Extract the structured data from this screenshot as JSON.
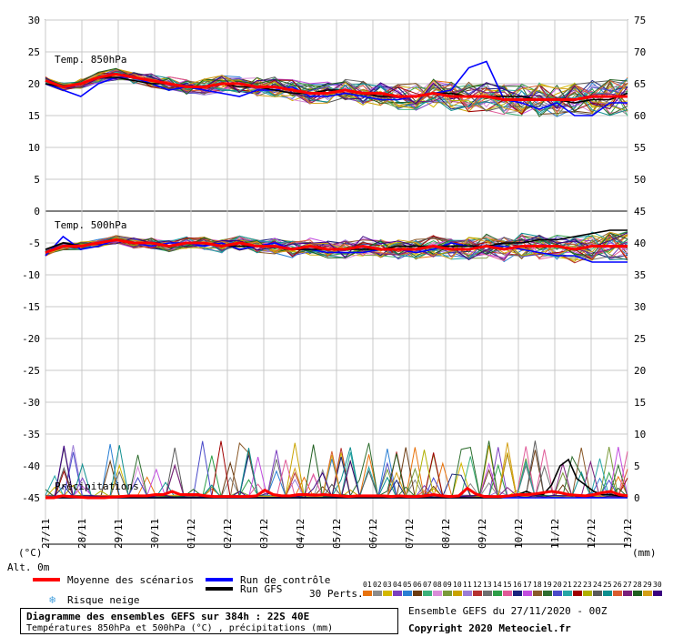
{
  "chart_data": {
    "type": "line",
    "x_ticks": [
      "27/11",
      "28/11",
      "29/11",
      "30/11",
      "01/12",
      "02/12",
      "03/12",
      "04/12",
      "05/12",
      "06/12",
      "07/12",
      "08/12",
      "09/12",
      "10/12",
      "11/12",
      "12/12",
      "13/12"
    ],
    "x_range": [
      "27/11",
      "13/12"
    ],
    "left_axis": {
      "unit": "(°C)",
      "ticks": [
        30,
        25,
        20,
        15,
        10,
        5,
        0,
        -5,
        -10,
        -15,
        -20,
        -25,
        -30,
        -35,
        -40,
        -45
      ],
      "range": [
        -45,
        30
      ]
    },
    "right_axis": {
      "unit": "(mm)",
      "ticks": [
        75,
        70,
        65,
        60,
        55,
        50,
        45,
        40,
        35,
        30,
        25,
        20,
        15,
        10,
        5,
        0
      ],
      "range": [
        0,
        75
      ]
    },
    "panel_labels": {
      "t850": "Temp. 850hPa",
      "t500": "Temp. 500hPa",
      "precip": "Précipitations",
      "alt": "Alt. 0m"
    },
    "members_label": "30 Perts.",
    "member_ids": [
      "01",
      "02",
      "03",
      "04",
      "05",
      "06",
      "07",
      "08",
      "09",
      "10",
      "11",
      "12",
      "13",
      "14",
      "15",
      "16",
      "17",
      "18",
      "19",
      "20",
      "21",
      "22",
      "23",
      "24",
      "25",
      "26",
      "27",
      "28",
      "29",
      "30"
    ],
    "member_colors": [
      "#e8720c",
      "#8c8c8c",
      "#d4b800",
      "#7b3fbf",
      "#2a7fd4",
      "#6b3b12",
      "#3db27a",
      "#d98cd9",
      "#7a9a3a",
      "#c9a300",
      "#9b7bd6",
      "#b53030",
      "#6f6f6f",
      "#2e9e48",
      "#e05a98",
      "#1a237e",
      "#c24de0",
      "#8a5a2a",
      "#2f6e2f",
      "#4a4ac9",
      "#26a6a6",
      "#a00000",
      "#b0b000",
      "#5a5a5a",
      "#0e8f8f",
      "#d95d2f",
      "#7b1f7b",
      "#1f5f1f",
      "#d4a017",
      "#3b0080"
    ],
    "series": [
      {
        "name": "Moyenne des scénarios",
        "color": "#ff0000",
        "t850": [
          20.5,
          19.5,
          20,
          21,
          21.5,
          21,
          20.5,
          20,
          19.5,
          19.5,
          20,
          20,
          19.5,
          19.5,
          19,
          18.5,
          18.5,
          19,
          18.5,
          18.5,
          18,
          18,
          18.5,
          18,
          18,
          18,
          17.5,
          17.5,
          17.5,
          17.5,
          17.5,
          18,
          18,
          18
        ],
        "t500": [
          -6.5,
          -5.5,
          -5.5,
          -5,
          -4.5,
          -5,
          -5,
          -5.5,
          -5,
          -5,
          -5.5,
          -5,
          -5.5,
          -5.5,
          -6,
          -5.5,
          -6,
          -6,
          -5.5,
          -6,
          -6,
          -6,
          -5.5,
          -6,
          -6,
          -5.5,
          -6,
          -5.5,
          -5.5,
          -5.5,
          -6,
          -5.5,
          -5.5,
          -5.5
        ],
        "precip": [
          0,
          0,
          0.3,
          0.2,
          0.1,
          0,
          0,
          0,
          0.1,
          0.2,
          0.3,
          0.3,
          0.3,
          0.5,
          0.5,
          1,
          0.5,
          0.5,
          0.5,
          0.3,
          0.2,
          0.2,
          0.2,
          0.2,
          0.2,
          0.3,
          1.2,
          0.5,
          0.3,
          0.3,
          0.5,
          0.5,
          0.4,
          0.5,
          0.4,
          0.3,
          0.2,
          0.3,
          0.3,
          0.3,
          0.3,
          0.2,
          0.3,
          0.2,
          0.2,
          0.3,
          0.5,
          0.3,
          0.2,
          0.3,
          1.5,
          0.6,
          0.2,
          0.2,
          0.2,
          0.3,
          0.5,
          0.5,
          0.6,
          0.8,
          1,
          0.8,
          0.5,
          0.4,
          0.3,
          0.5,
          0.8,
          1,
          0.5,
          0.3
        ]
      },
      {
        "name": "Run de contrôle",
        "color": "#0000ff",
        "t850": [
          20,
          19,
          18,
          20,
          21,
          21,
          20,
          19,
          19.5,
          19,
          18.5,
          18,
          19,
          19,
          19.5,
          18,
          18,
          18.5,
          18,
          17.5,
          17.5,
          18,
          18.5,
          19,
          22.5,
          23.5,
          17.5,
          17,
          16,
          17,
          15,
          15,
          17,
          17
        ],
        "t500": [
          -7,
          -4,
          -6,
          -5.5,
          -4.5,
          -5,
          -5.5,
          -5,
          -5,
          -5.5,
          -5,
          -6,
          -5.5,
          -5,
          -6,
          -6,
          -6.5,
          -6.5,
          -6.5,
          -6,
          -6,
          -6.5,
          -6,
          -5,
          -5.5,
          -5.5,
          -5.5,
          -6,
          -6.5,
          -7,
          -7,
          -8,
          -8,
          -8
        ],
        "precip": [
          0,
          0,
          0,
          0,
          0,
          0,
          0,
          0,
          0,
          0,
          0,
          0,
          0,
          0,
          0,
          0,
          0,
          0,
          0,
          0,
          0,
          0,
          0,
          0,
          0,
          0,
          0,
          0,
          0,
          0,
          0,
          0,
          0,
          0,
          0,
          0,
          0,
          0,
          0,
          0,
          0,
          0,
          0,
          0,
          0,
          0,
          0,
          0,
          0,
          0,
          0,
          0,
          0,
          0,
          0,
          0,
          0,
          0,
          0,
          0,
          0,
          0,
          0,
          0,
          0,
          0,
          0,
          0,
          0,
          0,
          0,
          0,
          0,
          0,
          0,
          0,
          0,
          0,
          0,
          0,
          0,
          0,
          0,
          0,
          0,
          0,
          0,
          0,
          0,
          0,
          0,
          0,
          0,
          0,
          0,
          0,
          0,
          0,
          0,
          0,
          0,
          0,
          0,
          0,
          0,
          0,
          0,
          0,
          0,
          0,
          0,
          0,
          0,
          0,
          0,
          0,
          0,
          0,
          0,
          0,
          0,
          0,
          0,
          0,
          0,
          0,
          0,
          0
        ]
      },
      {
        "name": "Run GFS",
        "color": "#000000",
        "t850": [
          20,
          19.5,
          20,
          21,
          21,
          20.5,
          20,
          20,
          19.5,
          19.5,
          20,
          19.5,
          19.5,
          19,
          18.5,
          18.5,
          19,
          19,
          18.5,
          18,
          18,
          18,
          18.5,
          18.5,
          18,
          18,
          18,
          18,
          17.5,
          17.5,
          17,
          17.5,
          17.5,
          18.5
        ],
        "t500": [
          -6,
          -5,
          -5.5,
          -5,
          -4.5,
          -5,
          -5,
          -5.5,
          -5,
          -5,
          -5.5,
          -5.5,
          -5.5,
          -5.5,
          -6,
          -6,
          -6,
          -6,
          -6,
          -6,
          -5.5,
          -5.5,
          -5.5,
          -5.5,
          -5.5,
          -5.5,
          -5,
          -5,
          -4.5,
          -4.5,
          -4,
          -3.5,
          -3,
          -3
        ],
        "precip": [
          0,
          0,
          0,
          0,
          0,
          0,
          0,
          0,
          0,
          0,
          0,
          0,
          0,
          0,
          0,
          0,
          0,
          0,
          0,
          0,
          0,
          0,
          0,
          0,
          0,
          0,
          0,
          0,
          0,
          0,
          0,
          0,
          0,
          0,
          0,
          0,
          0,
          0,
          0,
          0,
          0,
          0,
          0,
          0,
          0,
          0,
          0,
          0,
          0,
          0,
          0,
          0,
          0,
          0,
          0,
          0.3,
          0.5,
          1,
          0.5,
          0.5,
          2,
          5,
          6,
          3,
          2,
          1,
          0.5,
          0.5,
          0.3,
          0.2
        ]
      }
    ]
  },
  "legend": {
    "mean_label": "Moyenne des scénarios",
    "control_label": "Run de contrôle",
    "gfs_label": "Run GFS",
    "snow_label": "Risque neige",
    "snow_icon": "snowflake-icon",
    "snow_color": "#4aa3df"
  },
  "info": {
    "title": "Diagramme des ensembles GEFS sur 384h : 22S 40E",
    "subtitle": "Températures 850hPa et 500hPa (°C) , précipitations (mm)",
    "ensemble_run": "Ensemble GEFS du 27/11/2020 - 00Z",
    "copyright": "Copyright 2020 Meteociel.fr"
  }
}
